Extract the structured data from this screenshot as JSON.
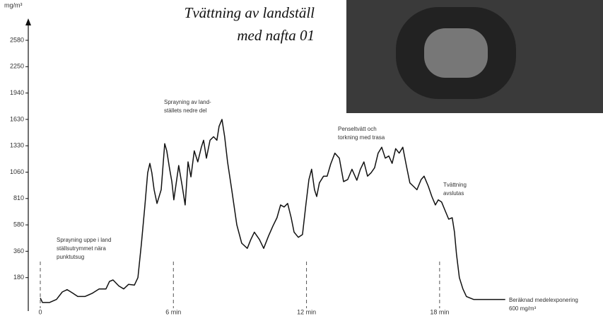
{
  "chart_data": {
    "type": "line",
    "title": [
      "Tvättning av landställ",
      "med nafta 01"
    ],
    "y_label": "mg/m³",
    "x": [
      0,
      0.1,
      0.41,
      0.73,
      0.99,
      1.21,
      1.43,
      1.69,
      2.01,
      2.33,
      2.65,
      2.96,
      3.12,
      3.28,
      3.54,
      3.76,
      3.98,
      4.24,
      4.4,
      4.56,
      4.71,
      4.84,
      4.94,
      5.03,
      5.13,
      5.26,
      5.45,
      5.61,
      5.7,
      5.83,
      5.93,
      6.02,
      6.15,
      6.24,
      6.4,
      6.53,
      6.66,
      6.79,
      6.94,
      7.1,
      7.26,
      7.36,
      7.49,
      7.65,
      7.81,
      7.96,
      8.06,
      8.19,
      8.31,
      8.44,
      8.63,
      8.86,
      9.08,
      9.33,
      9.49,
      9.65,
      9.88,
      10.07,
      10.29,
      10.48,
      10.67,
      10.83,
      10.99,
      11.15,
      11.31,
      11.44,
      11.63,
      11.82,
      11.98,
      12.11,
      12.23,
      12.36,
      12.46,
      12.58,
      12.77,
      12.93,
      13.09,
      13.28,
      13.48,
      13.67,
      13.86,
      14.05,
      14.27,
      14.43,
      14.59,
      14.75,
      14.91,
      15.07,
      15.23,
      15.39,
      15.55,
      15.71,
      15.86,
      16.02,
      16.18,
      16.34,
      16.5,
      16.66,
      16.82,
      16.98,
      17.17,
      17.3,
      17.49,
      17.65,
      17.81,
      17.94,
      18.09,
      18.25,
      18.41,
      18.57,
      18.67,
      18.76,
      18.89,
      19.05,
      19.21,
      19.53,
      20.48,
      20.96
    ],
    "series": [
      {
        "color": "#111111",
        "values": [
          41,
          10,
          10,
          31,
          82,
          98,
          77,
          51,
          51,
          72,
          103,
          103,
          154,
          164,
          123,
          103,
          134,
          129,
          180,
          427,
          736,
          1054,
          1150,
          1054,
          893,
          767,
          893,
          1354,
          1278,
          1090,
          970,
          798,
          990,
          1128,
          926,
          754,
          1165,
          1015,
          1278,
          1165,
          1315,
          1393,
          1203,
          1393,
          1433,
          1393,
          1551,
          1630,
          1433,
          1165,
          893,
          580,
          427,
          384,
          458,
          519,
          458,
          384,
          488,
          568,
          642,
          754,
          736,
          767,
          642,
          519,
          476,
          500,
          767,
          990,
          1090,
          893,
          829,
          958,
          1022,
          1022,
          1143,
          1255,
          1203,
          970,
          990,
          1090,
          983,
          1090,
          1165,
          1022,
          1054,
          1105,
          1255,
          1315,
          1203,
          1225,
          1150,
          1300,
          1255,
          1315,
          1128,
          958,
          926,
          893,
          990,
          1022,
          926,
          829,
          754,
          798,
          779,
          704,
          630,
          642,
          519,
          342,
          180,
          103,
          51,
          31,
          31,
          31
        ]
      }
    ],
    "xlim": [
      0,
      21
    ],
    "xticks": [
      0,
      {
        "value": 6,
        "label": "6 min"
      },
      {
        "value": 12,
        "label": "12 min"
      },
      {
        "value": 18,
        "label": "18 min"
      }
    ],
    "ylim": [
      0,
      2580
    ],
    "yticks": [
      180,
      360,
      580,
      810,
      1060,
      1330,
      1630,
      1940,
      2250,
      2580
    ],
    "annotations": [
      {
        "text": [
          "Sprayning uppe i land",
          "ställsutrymmet nära",
          "punktutsug"
        ]
      },
      {
        "text": [
          "Sprayning av land-",
          "ställets nedre del"
        ]
      },
      {
        "text": [
          "Penseltvätt och",
          "torkning med trasa"
        ]
      },
      {
        "text": [
          "Tvättning",
          "avslutas"
        ]
      },
      {
        "text": [
          "Beräknad medelexponering",
          "600 mg/m³"
        ]
      }
    ]
  }
}
